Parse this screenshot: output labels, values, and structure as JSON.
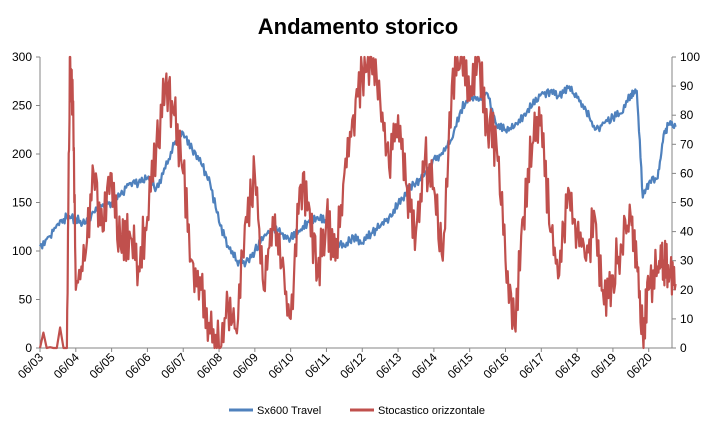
{
  "chart_data": {
    "type": "line",
    "title": "Andamento storico",
    "xlabel": "",
    "ylabel": "",
    "x": [
      "06/03",
      "06/04",
      "06/05",
      "06/06",
      "06/07",
      "06/08",
      "06/09",
      "06/10",
      "06/11",
      "06/12",
      "06/13",
      "06/14",
      "06/15",
      "06/16",
      "06/17",
      "06/18",
      "06/19",
      "06/20"
    ],
    "y_left": {
      "min": 0,
      "max": 300,
      "ticks": [
        "0",
        "50",
        "100",
        "150",
        "200",
        "250",
        "300"
      ]
    },
    "y_right": {
      "min": 0,
      "max": 100,
      "ticks": [
        "0",
        "10",
        "20",
        "30",
        "40",
        "50",
        "60",
        "70",
        "80",
        "90",
        "100"
      ]
    },
    "grid": false,
    "legend_position": "bottom",
    "series": [
      {
        "name": "Sx600 Travel",
        "axis": "left",
        "color": "#4F81BD",
        "points": [
          [
            "2003-06",
            105
          ],
          [
            "2003-09",
            115
          ],
          [
            "2003-12",
            128
          ],
          [
            "2004-03",
            135
          ],
          [
            "2004-06",
            133
          ],
          [
            "2004-09",
            128
          ],
          [
            "2004-12",
            140
          ],
          [
            "2005-03",
            148
          ],
          [
            "2005-06",
            150
          ],
          [
            "2005-09",
            158
          ],
          [
            "2005-12",
            170
          ],
          [
            "2006-03",
            170
          ],
          [
            "2006-06",
            175
          ],
          [
            "2006-09",
            165
          ],
          [
            "2006-12",
            185
          ],
          [
            "2007-03",
            210
          ],
          [
            "2007-06",
            222
          ],
          [
            "2007-09",
            205
          ],
          [
            "2007-12",
            190
          ],
          [
            "2008-03",
            170
          ],
          [
            "2008-06",
            130
          ],
          [
            "2008-09",
            105
          ],
          [
            "2008-12",
            90
          ],
          [
            "2009-03",
            88
          ],
          [
            "2009-06",
            100
          ],
          [
            "2009-09",
            115
          ],
          [
            "2009-12",
            122
          ],
          [
            "2010-03",
            118
          ],
          [
            "2010-06",
            113
          ],
          [
            "2010-09",
            120
          ],
          [
            "2010-12",
            130
          ],
          [
            "2011-03",
            135
          ],
          [
            "2011-06",
            130
          ],
          [
            "2011-09",
            110
          ],
          [
            "2011-12",
            105
          ],
          [
            "2012-03",
            115
          ],
          [
            "2012-06",
            108
          ],
          [
            "2012-09",
            118
          ],
          [
            "2012-12",
            125
          ],
          [
            "2013-03",
            135
          ],
          [
            "2013-06",
            148
          ],
          [
            "2013-09",
            162
          ],
          [
            "2013-12",
            170
          ],
          [
            "2014-03",
            180
          ],
          [
            "2014-06",
            195
          ],
          [
            "2014-09",
            200
          ],
          [
            "2014-12",
            215
          ],
          [
            "2015-03",
            245
          ],
          [
            "2015-06",
            260
          ],
          [
            "2015-09",
            255
          ],
          [
            "2015-12",
            262
          ],
          [
            "2016-03",
            230
          ],
          [
            "2016-06",
            225
          ],
          [
            "2016-09",
            228
          ],
          [
            "2016-12",
            240
          ],
          [
            "2017-03",
            250
          ],
          [
            "2017-06",
            262
          ],
          [
            "2017-09",
            265
          ],
          [
            "2017-12",
            260
          ],
          [
            "2018-03",
            268
          ],
          [
            "2018-06",
            258
          ],
          [
            "2018-09",
            245
          ],
          [
            "2018-12",
            225
          ],
          [
            "2019-03",
            232
          ],
          [
            "2019-06",
            238
          ],
          [
            "2019-09",
            242
          ],
          [
            "2019-12",
            262
          ],
          [
            "2020-02",
            265
          ],
          [
            "2020-04",
            155
          ],
          [
            "2020-06",
            170
          ],
          [
            "2020-09",
            175
          ],
          [
            "2020-11",
            220
          ],
          [
            "2021-01",
            232
          ],
          [
            "2021-03",
            228
          ]
        ]
      },
      {
        "name": "Stocastico orizzontale",
        "axis": "right",
        "color": "#C0504D",
        "points": [
          [
            "2003-06",
            0
          ],
          [
            "2004-03",
            0
          ],
          [
            "2004-04",
            100
          ],
          [
            "2004-05",
            85
          ],
          [
            "2004-06",
            20
          ],
          [
            "2004-09",
            30
          ],
          [
            "2004-12",
            60
          ],
          [
            "2005-03",
            40
          ],
          [
            "2005-06",
            60
          ],
          [
            "2005-09",
            35
          ],
          [
            "2005-12",
            40
          ],
          [
            "2006-03",
            28
          ],
          [
            "2006-06",
            45
          ],
          [
            "2006-09",
            70
          ],
          [
            "2006-12",
            90
          ],
          [
            "2007-03",
            80
          ],
          [
            "2007-06",
            60
          ],
          [
            "2007-09",
            30
          ],
          [
            "2007-12",
            20
          ],
          [
            "2008-03",
            5
          ],
          [
            "2008-06",
            0
          ],
          [
            "2008-09",
            15
          ],
          [
            "2008-12",
            5
          ],
          [
            "2009-03",
            45
          ],
          [
            "2009-06",
            60
          ],
          [
            "2009-09",
            20
          ],
          [
            "2009-12",
            45
          ],
          [
            "2010-03",
            28
          ],
          [
            "2010-06",
            10
          ],
          [
            "2010-09",
            55
          ],
          [
            "2010-12",
            50
          ],
          [
            "2011-03",
            25
          ],
          [
            "2011-06",
            45
          ],
          [
            "2011-09",
            30
          ],
          [
            "2011-12",
            60
          ],
          [
            "2012-03",
            80
          ],
          [
            "2012-06",
            95
          ],
          [
            "2012-09",
            100
          ],
          [
            "2012-12",
            85
          ],
          [
            "2013-03",
            62
          ],
          [
            "2013-06",
            80
          ],
          [
            "2013-09",
            55
          ],
          [
            "2013-12",
            40
          ],
          [
            "2014-03",
            65
          ],
          [
            "2014-06",
            55
          ],
          [
            "2014-09",
            30
          ],
          [
            "2014-12",
            90
          ],
          [
            "2015-03",
            100
          ],
          [
            "2015-06",
            85
          ],
          [
            "2015-09",
            100
          ],
          [
            "2015-12",
            75
          ],
          [
            "2016-03",
            70
          ],
          [
            "2016-06",
            30
          ],
          [
            "2016-09",
            8
          ],
          [
            "2016-12",
            45
          ],
          [
            "2017-03",
            70
          ],
          [
            "2017-06",
            80
          ],
          [
            "2017-09",
            40
          ],
          [
            "2017-12",
            25
          ],
          [
            "2018-03",
            55
          ],
          [
            "2018-06",
            40
          ],
          [
            "2018-09",
            30
          ],
          [
            "2018-12",
            45
          ],
          [
            "2019-03",
            15
          ],
          [
            "2019-06",
            25
          ],
          [
            "2019-09",
            35
          ],
          [
            "2019-12",
            45
          ],
          [
            "2020-02",
            30
          ],
          [
            "2020-04",
            5
          ],
          [
            "2020-06",
            20
          ],
          [
            "2020-09",
            28
          ],
          [
            "2020-11",
            30
          ],
          [
            "2021-01",
            25
          ],
          [
            "2021-03",
            22
          ]
        ]
      }
    ]
  }
}
